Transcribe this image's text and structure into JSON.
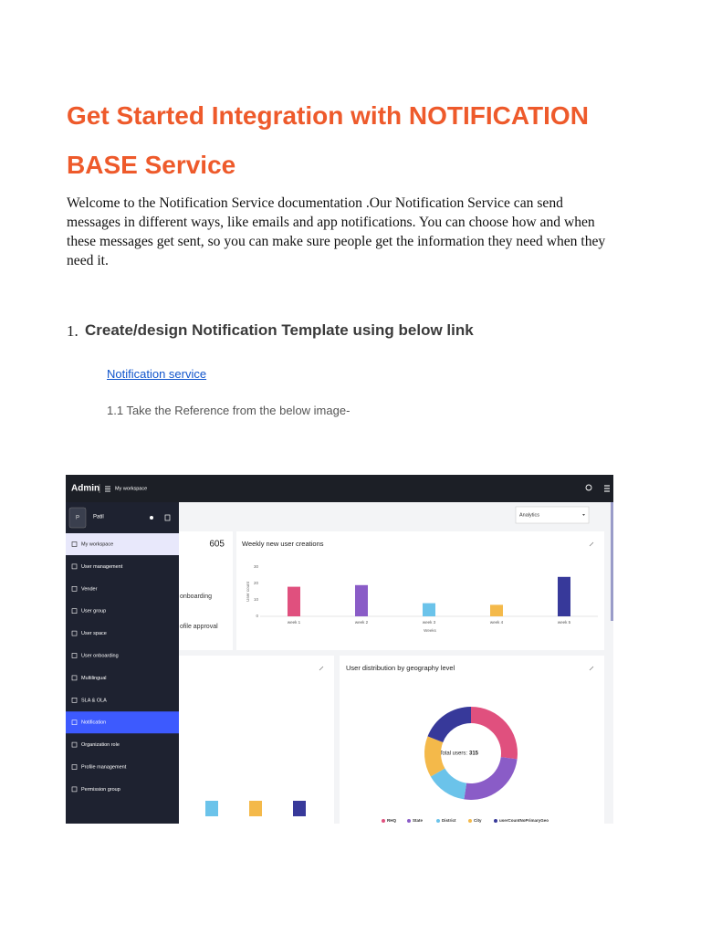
{
  "title": "Get Started Integration with NOTIFICATION BASE Service",
  "intro": "Welcome to the Notification Service documentation .Our Notification Service can send messages in different ways, like emails and app notifications. You can choose how and when these messages get sent, so you can make sure people get the information they need when they need it.",
  "step1": {
    "number": "1.",
    "heading": "Create/design Notification Template using  below link",
    "link": "Notification service",
    "reference": "1.1 Take the Reference from the below image-"
  },
  "screenshot": {
    "app_name": "Admin",
    "breadcrumb": "My workspace",
    "avatar": "P",
    "user": "Patil",
    "menu": [
      "My workspace",
      "User management",
      "Vender",
      "User group",
      "User space",
      "User onboarding",
      "Multilingual",
      "SLA & OLA",
      "Notification",
      "Organization role",
      "Profile management",
      "Permission group"
    ],
    "dropdown": "Analytics",
    "card_total": 605,
    "card_lines": [
      "onboarding",
      "ofile approval"
    ],
    "weekly_chart": {
      "title": "Weekly new user creations",
      "y_label": "User count",
      "x_label": "Weeks",
      "categories": [
        "week 1",
        "week 2",
        "week 3",
        "week 4",
        "week 5"
      ],
      "values": [
        18,
        19,
        8,
        7,
        24
      ],
      "colors": [
        "#e0507e",
        "#8a5cc7",
        "#6bc3ea",
        "#f4b94a",
        "#37399a"
      ],
      "ylim": [
        0,
        30
      ],
      "yticks": [
        0,
        10,
        20,
        30
      ]
    },
    "geo_chart": {
      "title": "User distribution by geography level",
      "center_label": "Total users:",
      "total": 315,
      "legend": [
        "RHQ",
        "State",
        "District",
        "City",
        "userCountNoPrimaryGeo"
      ],
      "values": [
        85,
        80,
        45,
        45,
        60
      ],
      "colors": [
        "#e0507e",
        "#8a5cc7",
        "#6bc3ea",
        "#f4b94a",
        "#37399a"
      ]
    }
  }
}
